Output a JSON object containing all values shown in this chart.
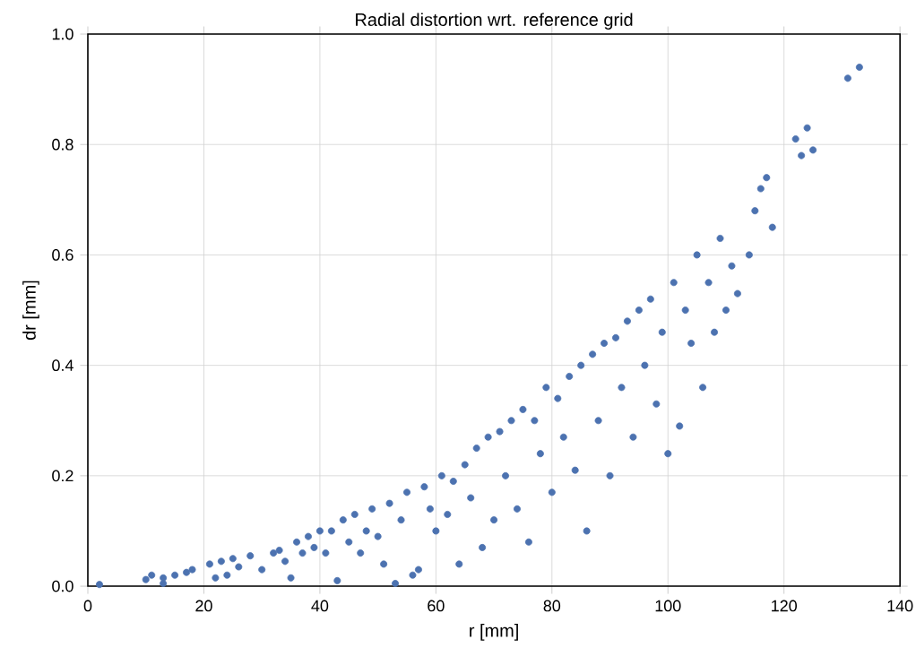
{
  "chart_data": {
    "type": "scatter",
    "title": "Radial distortion wrt. reference grid",
    "xlabel": "r [mm]",
    "ylabel": "dr [mm]",
    "xlim": [
      0,
      140
    ],
    "ylim": [
      0,
      1.0
    ],
    "xticks": [
      0,
      20,
      40,
      60,
      80,
      100,
      120,
      140
    ],
    "yticks": [
      {
        "value": 0,
        "label": "0.0"
      },
      0.2,
      0.4,
      0.6,
      0.8,
      {
        "value": 1,
        "label": "1.0"
      }
    ],
    "grid": true,
    "series": [
      {
        "color": "#4c72b0",
        "x": [
          2,
          10,
          11,
          13,
          13,
          15,
          17,
          18,
          21,
          22,
          23,
          24,
          25,
          26,
          28,
          30,
          32,
          33,
          34,
          35,
          36,
          37,
          38,
          39,
          40,
          41,
          42,
          43,
          44,
          45,
          46,
          47,
          48,
          49,
          50,
          51,
          52,
          53,
          54,
          55,
          56,
          57,
          58,
          59,
          60,
          61,
          62,
          63,
          64,
          65,
          66,
          67,
          68,
          69,
          70,
          71,
          72,
          73,
          74,
          75,
          76,
          77,
          78,
          79,
          80,
          81,
          82,
          83,
          84,
          85,
          86,
          87,
          88,
          89,
          90,
          91,
          92,
          93,
          94,
          95,
          96,
          97,
          98,
          99,
          100,
          101,
          102,
          103,
          104,
          105,
          106,
          107,
          108,
          109,
          110,
          111,
          112,
          114,
          115,
          116,
          117,
          118,
          122,
          123,
          124,
          125,
          131,
          133
        ],
        "values": [
          0.003,
          0.012,
          0.02,
          0.015,
          0.005,
          0.02,
          0.025,
          0.03,
          0.04,
          0.015,
          0.045,
          0.02,
          0.05,
          0.035,
          0.055,
          0.03,
          0.06,
          0.065,
          0.045,
          0.015,
          0.08,
          0.06,
          0.09,
          0.07,
          0.1,
          0.06,
          0.1,
          0.01,
          0.12,
          0.08,
          0.13,
          0.06,
          0.1,
          0.14,
          0.09,
          0.04,
          0.15,
          0.005,
          0.12,
          0.17,
          0.02,
          0.03,
          0.18,
          0.14,
          0.1,
          0.2,
          0.13,
          0.19,
          0.04,
          0.22,
          0.16,
          0.25,
          0.07,
          0.27,
          0.12,
          0.28,
          0.2,
          0.3,
          0.14,
          0.32,
          0.08,
          0.3,
          0.24,
          0.36,
          0.17,
          0.34,
          0.27,
          0.38,
          0.21,
          0.4,
          0.1,
          0.42,
          0.3,
          0.44,
          0.2,
          0.45,
          0.36,
          0.48,
          0.27,
          0.5,
          0.4,
          0.52,
          0.33,
          0.46,
          0.24,
          0.55,
          0.29,
          0.5,
          0.44,
          0.6,
          0.36,
          0.55,
          0.46,
          0.63,
          0.5,
          0.58,
          0.53,
          0.6,
          0.68,
          0.72,
          0.74,
          0.65,
          0.81,
          0.78,
          0.83,
          0.79,
          0.92,
          0.94
        ]
      }
    ]
  }
}
